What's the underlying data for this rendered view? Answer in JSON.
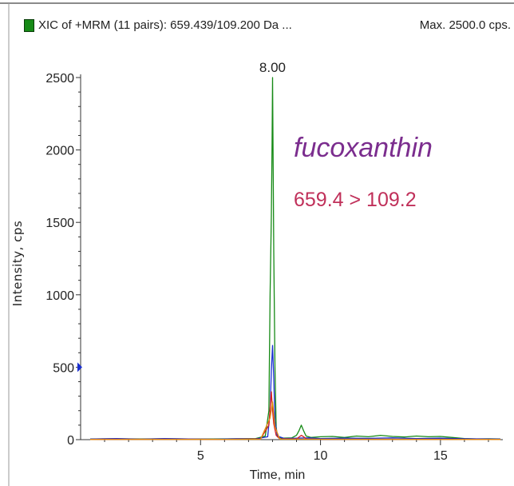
{
  "header": {
    "title": "XIC of +MRM (11 pairs): 659.439/109.200 Da ...",
    "max_label": "Max. 2500.0 cps.",
    "swatch_color": "#168a16"
  },
  "chart_data": {
    "type": "line",
    "title": "XIC of +MRM (11 pairs): 659.439/109.200 Da ...",
    "xlabel": "Time, min",
    "ylabel": "Intensity, cps",
    "xlim": [
      0.0,
      17.6
    ],
    "ylim": [
      0,
      2500
    ],
    "x_ticks": [
      5,
      10,
      15
    ],
    "y_ticks": [
      0,
      500,
      1000,
      1500,
      2000,
      2500
    ],
    "grid": false,
    "peak_label": {
      "x": 8.0,
      "y": 2500,
      "text": "8.00"
    },
    "annotations": [
      {
        "text": "fucoxanthin",
        "color": "#7b2d8e"
      },
      {
        "text": "659.4 > 109.2",
        "color": "#c0305a"
      }
    ],
    "marker_y": 500,
    "series": [
      {
        "color": "#168a16",
        "x": [
          0.4,
          1.5,
          2.5,
          3.5,
          4.5,
          5.5,
          6.5,
          7.3,
          7.7,
          7.85,
          7.9,
          7.95,
          7.98,
          8.0,
          8.02,
          8.05,
          8.1,
          8.15,
          8.2,
          8.4,
          8.8,
          9.0,
          9.1,
          9.2,
          9.3,
          9.4,
          9.6,
          10.0,
          10.5,
          11.0,
          11.5,
          12.0,
          12.5,
          13.0,
          13.5,
          14.0,
          14.5,
          15.0,
          15.5,
          16.0,
          16.5,
          17.0,
          17.5
        ],
        "y": [
          5,
          6,
          5,
          6,
          5,
          5,
          6,
          8,
          25,
          200,
          1000,
          1550,
          2050,
          2500,
          2000,
          1300,
          500,
          90,
          20,
          10,
          12,
          30,
          60,
          100,
          60,
          25,
          15,
          20,
          22,
          15,
          25,
          20,
          30,
          22,
          18,
          25,
          20,
          22,
          15,
          8,
          5,
          6,
          5
        ]
      },
      {
        "color": "#1a2fd0",
        "x": [
          0.4,
          1.5,
          2.5,
          3.5,
          4.5,
          5.5,
          6.5,
          7.3,
          7.8,
          7.9,
          7.95,
          8.0,
          8.05,
          8.1,
          8.2,
          8.5,
          9.0,
          9.5,
          10.0,
          11.0,
          12.0,
          13.0,
          14.0,
          15.0,
          16.0,
          17.0,
          17.5
        ],
        "y": [
          4,
          8,
          3,
          7,
          5,
          3,
          6,
          5,
          20,
          200,
          480,
          650,
          420,
          130,
          25,
          8,
          10,
          12,
          8,
          10,
          9,
          12,
          8,
          10,
          6,
          5,
          4
        ]
      },
      {
        "color": "#d62020",
        "x": [
          0.4,
          3.0,
          6.0,
          7.5,
          7.85,
          7.95,
          8.0,
          8.05,
          8.15,
          8.3,
          9.0,
          9.2,
          9.3,
          9.4,
          10.0,
          12.0,
          14.0,
          17.5
        ],
        "y": [
          2,
          3,
          2,
          5,
          100,
          330,
          200,
          110,
          30,
          5,
          5,
          30,
          20,
          5,
          3,
          3,
          3,
          2
        ]
      },
      {
        "color": "#e08a10",
        "x": [
          0.4,
          7.5,
          7.9,
          8.0,
          8.1,
          8.3,
          17.5
        ],
        "y": [
          1,
          2,
          150,
          260,
          90,
          3,
          1
        ]
      }
    ]
  }
}
